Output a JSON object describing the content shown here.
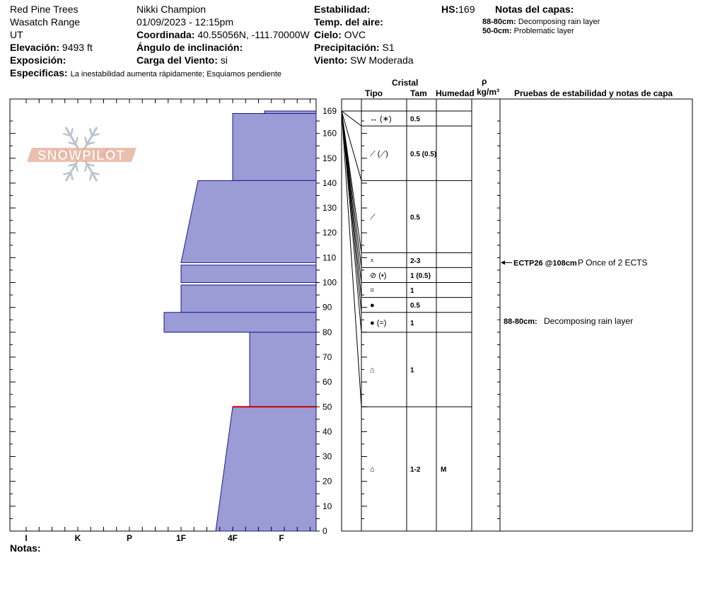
{
  "header": {
    "location": "Red Pine Trees",
    "range": "Wasatch Range",
    "state": "UT",
    "elevation_label": "Elevación:",
    "elevation": "9493 ft",
    "aspect_label": "Exposición:",
    "aspect": "",
    "specifics_label": "Especificas:",
    "specifics": "La inestabilidad aumenta rápidamente;  Esquiamos pendiente",
    "observer": "Nikki Champion",
    "datetime": "01/09/2023 - 12:15pm",
    "coord_label": "Coordinada:",
    "coord": "40.55056N, -111.70000W",
    "slope_label": "Ángulo de inclinación:",
    "slope": "",
    "wind_load_label": "Carga del Viento:",
    "wind_load": "si",
    "stability_label": "Estabilidad:",
    "stability": "",
    "air_temp_label": "Temp. del aire:",
    "air_temp": "",
    "sky_label": "Cielo:",
    "sky": "OVC",
    "precip_label": "Precipitación:",
    "precip": "S1",
    "wind_label": "Viento:",
    "wind": "SW Moderada",
    "hs_label": "HS:",
    "hs": "169",
    "layer_notes_title": "Notas del capas:",
    "layer_notes": [
      {
        "range": "88-80cm:",
        "text": "Decomposing rain layer"
      },
      {
        "range": "50-0cm:",
        "text": "Problematic layer"
      }
    ],
    "notes_label": "Notas:"
  },
  "columns": {
    "crystal": "Cristal",
    "type": "Tipo",
    "size": "Tam",
    "moisture": "Humedad",
    "rho": "ρ",
    "density_unit": "kg/m³",
    "tests_title": "Pruebas de estabilidad y notas de capa"
  },
  "logo_text": "SNOWPILOT",
  "colors": {
    "profile_fill": "#9b9bd6",
    "profile_stroke": "#1a1a8c",
    "weak_layer": "#cc0000",
    "logo": "#e8b4a0",
    "snowflake": "#b8c4d0"
  },
  "chart_data": {
    "type": "snow_profile",
    "height_axis": {
      "min": 0,
      "max": 169,
      "ticks": [
        0,
        10,
        20,
        30,
        40,
        50,
        60,
        70,
        80,
        90,
        100,
        110,
        120,
        130,
        140,
        150,
        160,
        169
      ]
    },
    "hardness_axis": {
      "categories": [
        "I",
        "K",
        "P",
        "1F",
        "4F",
        "F"
      ]
    },
    "layers": [
      {
        "top": 169,
        "bottom": 168,
        "hardness_top": "F+",
        "hardness_bottom": "F+"
      },
      {
        "top": 168,
        "bottom": 141,
        "hardness_top": "4F",
        "hardness_bottom": "4F"
      },
      {
        "top": 141,
        "bottom": 108,
        "hardness_top": "1F-",
        "hardness_bottom": "1F"
      },
      {
        "top": 107,
        "bottom": 100,
        "hardness_top": "1F",
        "hardness_bottom": "1F"
      },
      {
        "top": 99,
        "bottom": 88,
        "hardness_top": "1F",
        "hardness_bottom": "1F"
      },
      {
        "top": 88,
        "bottom": 80,
        "hardness_top": "1F+",
        "hardness_bottom": "1F+"
      },
      {
        "top": 80,
        "bottom": 50,
        "hardness_top": "4F-",
        "hardness_bottom": "4F-"
      },
      {
        "top": 50,
        "bottom": 0,
        "hardness_top": "4F",
        "hardness_bottom": "4F+"
      }
    ],
    "weak_layer_height": 50,
    "grain_layers": [
      {
        "top": 169,
        "bottom": 163,
        "type": "↔ (∗)",
        "size": "0.5",
        "moisture": ""
      },
      {
        "top": 163,
        "bottom": 141,
        "type": "⟋ (⟋)",
        "size": "0.5 (0.5)",
        "moisture": ""
      },
      {
        "top": 141,
        "bottom": 112,
        "type": "⟋",
        "size": "0.5",
        "moisture": ""
      },
      {
        "top": 112,
        "bottom": 106,
        "type": "⩡",
        "size": "2-3",
        "moisture": ""
      },
      {
        "top": 106,
        "bottom": 100,
        "type": "⊘ (•)",
        "size": "1 (0.5)",
        "moisture": ""
      },
      {
        "top": 100,
        "bottom": 94,
        "type": "=",
        "size": "1",
        "moisture": ""
      },
      {
        "top": 94,
        "bottom": 88,
        "type": "●",
        "size": "0.5",
        "moisture": ""
      },
      {
        "top": 88,
        "bottom": 80,
        "type": "● (=)",
        "size": "1",
        "moisture": ""
      },
      {
        "top": 80,
        "bottom": 50,
        "type": "⌂",
        "size": "1",
        "moisture": ""
      },
      {
        "top": 50,
        "bottom": 0,
        "type": "⌂",
        "size": "1-2",
        "moisture": "M"
      }
    ],
    "tests": [
      {
        "height": 108,
        "label": "ECTP26 @108cm",
        "note": "P Once of 2 ECTS"
      }
    ],
    "layer_annotations": [
      {
        "height": 84,
        "range": "88-80cm:",
        "text": "Decomposing rain layer"
      }
    ]
  }
}
